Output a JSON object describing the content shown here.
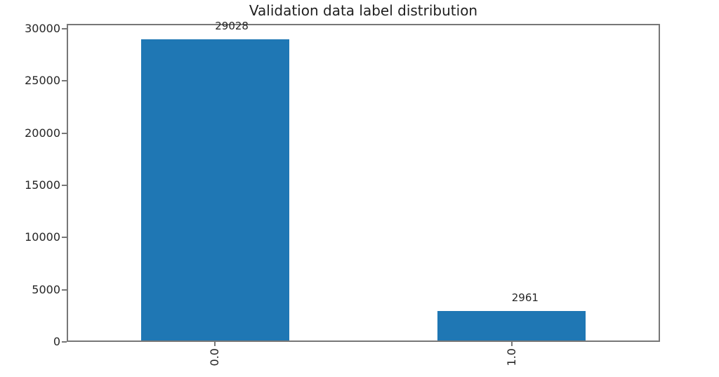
{
  "chart_data": {
    "type": "bar",
    "title": "Validation data label distribution",
    "categories": [
      "0.0",
      "1.0"
    ],
    "values": [
      29028,
      2961
    ],
    "bar_value_labels": [
      "29028",
      "2961"
    ],
    "yticks": [
      0,
      5000,
      10000,
      15000,
      20000,
      25000,
      30000
    ],
    "ylim": [
      0,
      30480
    ],
    "xlabel": "",
    "ylabel": "",
    "x_tick_rotation": 90,
    "grid": false,
    "legend": false,
    "bar_color": "#1f77b4",
    "spine_color": "#777777",
    "text_color": "#262626",
    "background": "#ffffff"
  }
}
